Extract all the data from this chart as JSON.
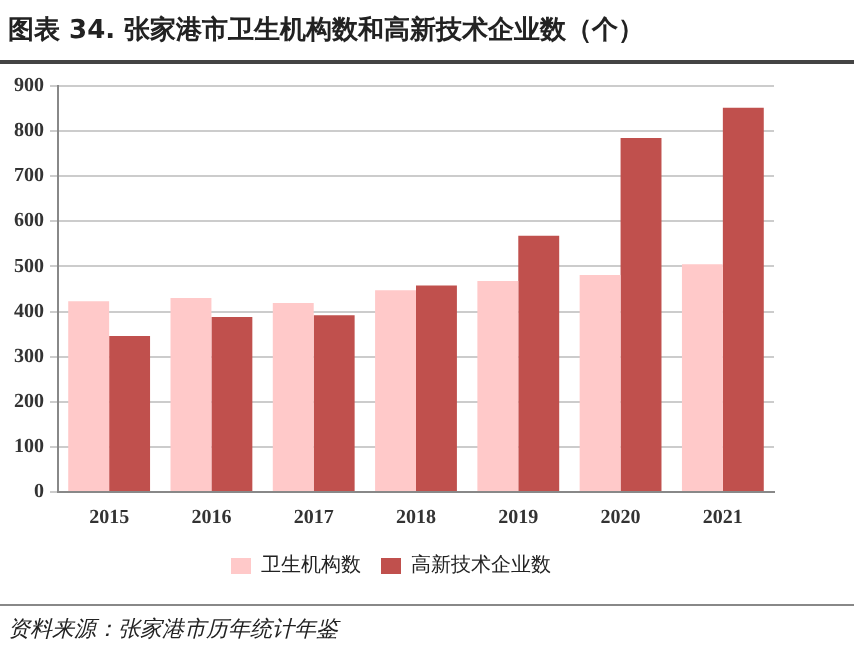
{
  "chart_data": {
    "type": "bar",
    "title": "图表 34. 张家港市卫生机构数和高新技术企业数（个）",
    "categories": [
      "2015",
      "2016",
      "2017",
      "2018",
      "2019",
      "2020",
      "2021"
    ],
    "series": [
      {
        "name": "卫生机构数",
        "color": "#ffc9c9",
        "values": [
          423,
          430,
          419,
          447,
          468,
          481,
          505
        ]
      },
      {
        "name": "高新技术企业数",
        "color": "#c0504d",
        "values": [
          346,
          388,
          392,
          458,
          568,
          785,
          852
        ]
      }
    ],
    "ylim": [
      0,
      900
    ],
    "yticks": [
      0,
      100,
      200,
      300,
      400,
      500,
      600,
      700,
      800,
      900
    ],
    "grid": "y",
    "legend": "bottom",
    "annotations": [
      "资料来源：张家港市历年统计年鉴"
    ]
  }
}
